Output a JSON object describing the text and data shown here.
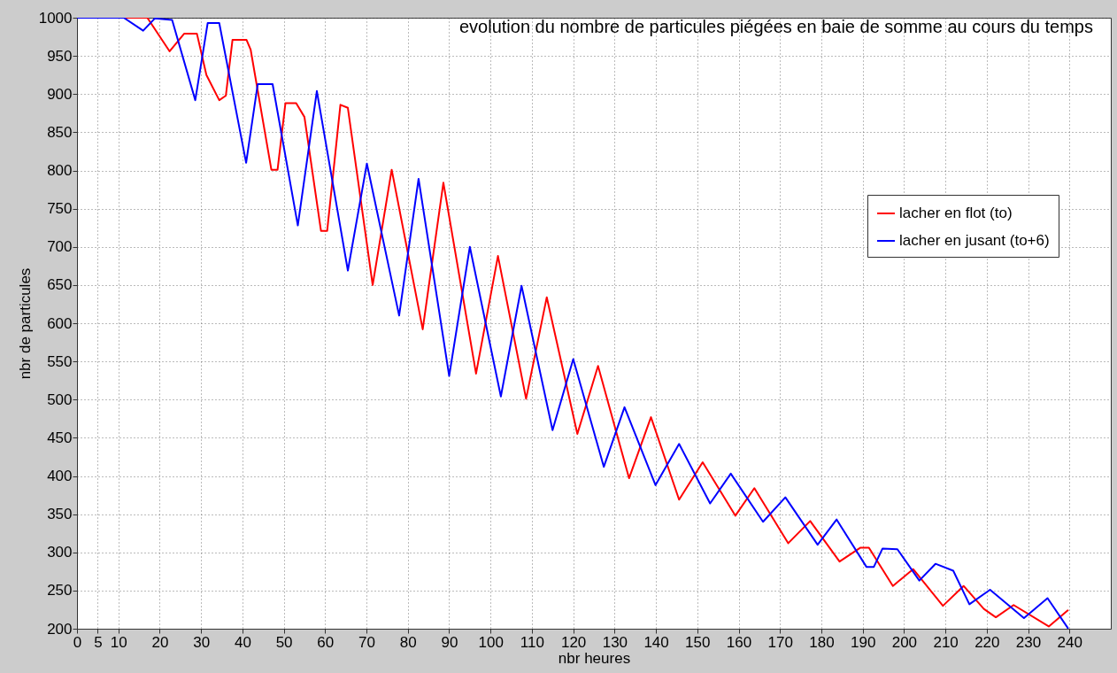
{
  "chart_data": {
    "type": "line",
    "title": "evolution du nombre de particules piégées en baie de somme au cours du temps",
    "xlabel": "nbr heures",
    "ylabel": "nbr de particules",
    "xlim": [
      0,
      250
    ],
    "ylim": [
      200,
      1000
    ],
    "xticks": [
      0,
      5,
      10,
      20,
      30,
      40,
      50,
      60,
      70,
      80,
      90,
      100,
      110,
      120,
      130,
      140,
      150,
      160,
      170,
      180,
      190,
      200,
      210,
      220,
      230,
      240
    ],
    "yticks": [
      200,
      250,
      300,
      350,
      400,
      450,
      500,
      550,
      600,
      650,
      700,
      750,
      800,
      850,
      900,
      950,
      1000
    ],
    "grid": true,
    "legend": "right",
    "line_style": "solid",
    "marker": "none",
    "series": [
      {
        "name": "lacher en flot (to)",
        "color": "#ff0000",
        "x": [
          0,
          17,
          22.4,
          25.9,
          29,
          31.3,
          34.4,
          36,
          37.6,
          41,
          42,
          47,
          48.5,
          50.4,
          53,
          55,
          59,
          60.5,
          63.7,
          65.5,
          71.5,
          76.1,
          83.6,
          88.6,
          96.5,
          101.8,
          108.6,
          113.6,
          121,
          126,
          133.5,
          138.8,
          145.6,
          151.3,
          159.2,
          163.8,
          172,
          177.3,
          184.4,
          189.4,
          191.5,
          197.3,
          202.2,
          209.4,
          214.4,
          219.3,
          222.2,
          226.5,
          235,
          239.6
        ],
        "values": [
          1000,
          1000,
          956,
          979,
          979,
          925,
          892,
          898,
          971,
          971,
          958,
          801,
          801,
          888,
          888,
          870,
          721,
          721,
          886,
          882,
          650,
          801,
          592,
          784,
          534,
          688,
          501,
          634,
          455,
          544,
          397,
          477,
          369,
          418,
          348,
          384,
          312,
          341,
          288,
          306,
          306,
          256,
          278,
          230,
          256,
          226,
          215,
          231,
          203,
          224
        ]
      },
      {
        "name": "lacher en jusant (to+6)",
        "color": "#0000ff",
        "x": [
          0,
          11.3,
          16,
          18.8,
          23,
          28.6,
          31.6,
          34.4,
          40.9,
          43.7,
          47.3,
          53.4,
          58,
          65.5,
          70.1,
          77.9,
          82.6,
          90,
          95,
          102.5,
          107.5,
          115,
          120,
          127.4,
          132.4,
          139.9,
          145.6,
          153.1,
          158.1,
          165.9,
          171.3,
          179.1,
          183.7,
          190.9,
          192.7,
          194.8,
          198.4,
          203.7,
          207.6,
          211.9,
          215.8,
          220.8,
          229,
          234.7,
          239.6
        ],
        "values": [
          1000,
          1000,
          983,
          999,
          997,
          892,
          993,
          993,
          810,
          913,
          913,
          728,
          904,
          669,
          809,
          610,
          789,
          531,
          700,
          504,
          649,
          460,
          553,
          412,
          490,
          388,
          442,
          364,
          403,
          340,
          372,
          310,
          343,
          281,
          281,
          305,
          304,
          263,
          285,
          276,
          232,
          251,
          214,
          240,
          201
        ]
      }
    ]
  }
}
